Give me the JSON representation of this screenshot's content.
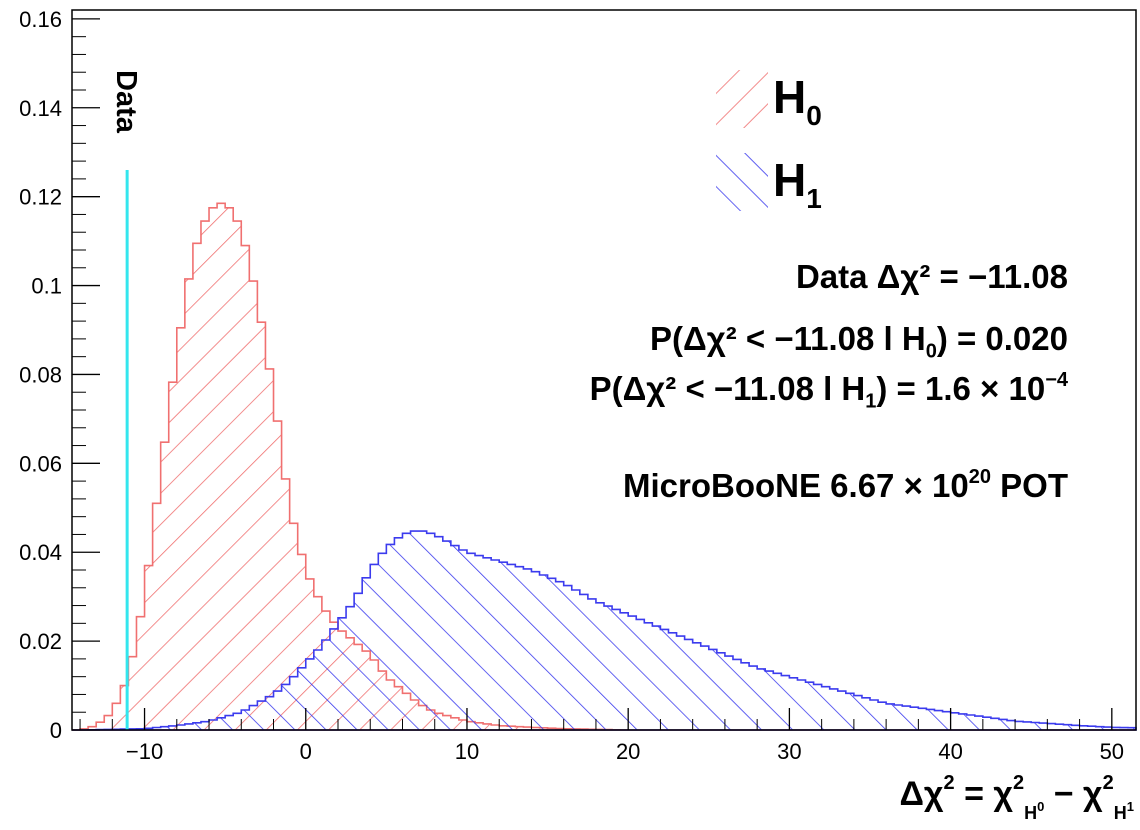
{
  "chart_data": {
    "type": "histogram",
    "xlabel_parts": {
      "main": "Δχ",
      "sup": "2",
      "eq": " = χ",
      "sup1": "2",
      "sub1": "H",
      "subsub1": "0",
      "minus": " − χ",
      "sup2": "2",
      "sub2": "H",
      "subsub2": "1"
    },
    "xlim": [
      -14.5,
      51.5
    ],
    "ylim": [
      0,
      0.162
    ],
    "x_ticks": [
      -10,
      0,
      10,
      20,
      30,
      40,
      50
    ],
    "x_tick_labels": [
      "−10",
      "0",
      "10",
      "20",
      "30",
      "40",
      "50"
    ],
    "y_ticks": [
      0,
      0.02,
      0.04,
      0.06,
      0.08,
      0.1,
      0.12,
      0.14,
      0.16
    ],
    "y_tick_labels": [
      "0",
      "0.02",
      "0.04",
      "0.06",
      "0.08",
      "0.1",
      "0.12",
      "0.14",
      "0.16"
    ],
    "grid": false,
    "legend_position": "top-right",
    "data_line": {
      "x": -11.08,
      "y_top": 0.126,
      "label": "Data",
      "color": "#33e6ee"
    },
    "series": [
      {
        "name": "H0",
        "color": "#f07070",
        "hatch": "backslash",
        "points": [
          [
            -14,
            0
          ],
          [
            -13,
            0.001
          ],
          [
            -12,
            0.004
          ],
          [
            -11,
            0.012
          ],
          [
            -10,
            0.03
          ],
          [
            -9,
            0.058
          ],
          [
            -8,
            0.085
          ],
          [
            -7,
            0.107
          ],
          [
            -6,
            0.117
          ],
          [
            -5,
            0.119
          ],
          [
            -4,
            0.113
          ],
          [
            -3,
            0.097
          ],
          [
            -2,
            0.076
          ],
          [
            -1,
            0.05
          ],
          [
            0,
            0.036
          ],
          [
            1,
            0.028
          ],
          [
            2,
            0.023
          ],
          [
            3,
            0.02
          ],
          [
            4,
            0.017
          ],
          [
            5,
            0.012
          ],
          [
            6,
            0.009
          ],
          [
            7,
            0.006
          ],
          [
            8,
            0.004
          ],
          [
            9,
            0.003
          ],
          [
            10,
            0.002
          ],
          [
            12,
            0.001
          ],
          [
            14,
            0.0006
          ],
          [
            16,
            0.0003
          ],
          [
            20,
            0
          ]
        ]
      },
      {
        "name": "H1",
        "color": "#3b3bee",
        "hatch": "slash",
        "points": [
          [
            -14,
            0
          ],
          [
            -10,
            0.0003
          ],
          [
            -8,
            0.001
          ],
          [
            -6,
            0.002
          ],
          [
            -4,
            0.004
          ],
          [
            -2,
            0.008
          ],
          [
            -1,
            0.011
          ],
          [
            0,
            0.015
          ],
          [
            1,
            0.019
          ],
          [
            2,
            0.024
          ],
          [
            3,
            0.029
          ],
          [
            4,
            0.036
          ],
          [
            5,
            0.041
          ],
          [
            6,
            0.044
          ],
          [
            7,
            0.045
          ],
          [
            8,
            0.044
          ],
          [
            9,
            0.042
          ],
          [
            10,
            0.04
          ],
          [
            12,
            0.038
          ],
          [
            14,
            0.036
          ],
          [
            16,
            0.033
          ],
          [
            18,
            0.029
          ],
          [
            20,
            0.026
          ],
          [
            22,
            0.023
          ],
          [
            24,
            0.02
          ],
          [
            26,
            0.017
          ],
          [
            28,
            0.014
          ],
          [
            30,
            0.012
          ],
          [
            32,
            0.01
          ],
          [
            34,
            0.008
          ],
          [
            36,
            0.006
          ],
          [
            38,
            0.005
          ],
          [
            40,
            0.004
          ],
          [
            42,
            0.003
          ],
          [
            44,
            0.002
          ],
          [
            46,
            0.0015
          ],
          [
            48,
            0.001
          ],
          [
            50,
            0.0006
          ],
          [
            51.5,
            0.0005
          ]
        ]
      }
    ]
  },
  "legend": {
    "h0": {
      "main": "H",
      "sub": "0"
    },
    "h1": {
      "main": "H",
      "sub": "1"
    }
  },
  "annotations": {
    "line1": "Data Δχ² = −11.08",
    "line2_pre": "P(Δχ² < −11.08 l H",
    "line2_sub": "0",
    "line2_post": ") = 0.020",
    "line3_pre": "P(Δχ² < −11.08 l H",
    "line3_sub": "1",
    "line3_post": ") = 1.6 × 10",
    "line3_sup": "−4",
    "line4_pre": "MicroBooNE  6.67 × 10",
    "line4_sup": "20",
    "line4_post": " POT"
  }
}
